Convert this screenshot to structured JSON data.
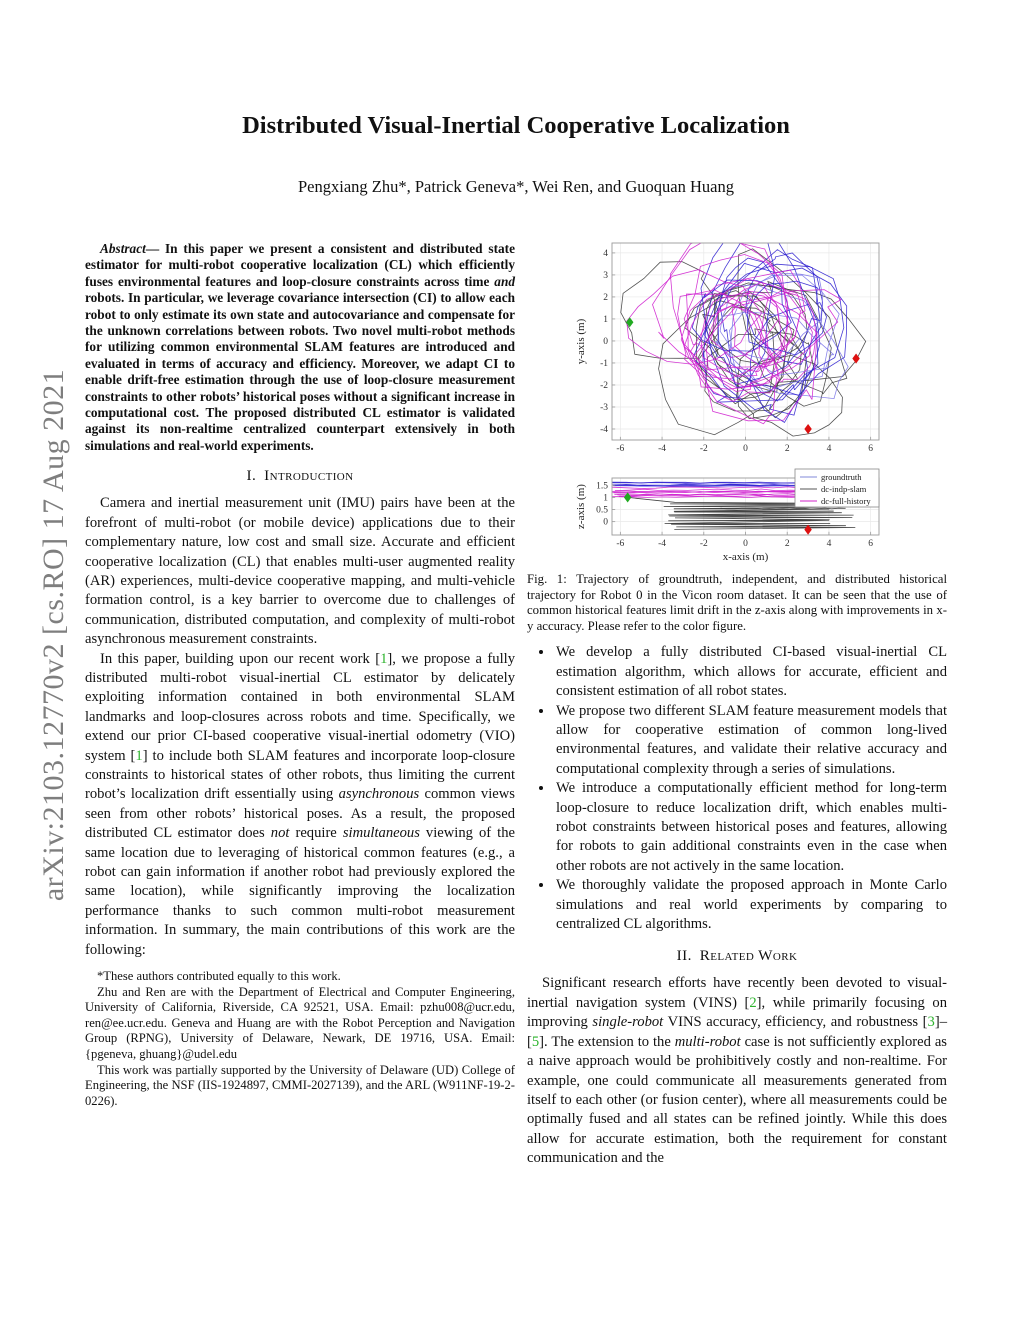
{
  "arxiv_banner": "arXiv:2103.12770v2  [cs.RO]  17 Aug 2021",
  "title": "Distributed Visual-Inertial Cooperative Localization",
  "authors": "Pengxiang Zhu*, Patrick Geneva*, Wei Ren, and Guoquan Huang",
  "headings": {
    "introduction": "I.&ensp;Introduction",
    "related_work": "II.&ensp;Related Work"
  },
  "abstract_html": "<span class=\"abstract-label\">Abstract</span>— In this paper we present a consistent and distributed state estimator for multi-robot cooperative localization (CL) which efficiently fuses environmental features and loop-closure constraints across time <i>and</i> robots. In particular, we leverage covariance intersection (CI) to allow each robot to only estimate its own state and autocovariance and compensate for the unknown correlations between robots. Two novel multi-robot methods for utilizing common environmental SLAM features are introduced and evaluated in terms of accuracy and efficiency. Moreover, we adapt CI to enable drift-free estimation through the use of loop-closure measurement constraints to other robots’ historical poses without a significant increase in computational cost. The proposed distributed CL estimator is validated against its non-realtime centralized counterpart extensively in both simulations and real-world experiments.",
  "paragraphs": {
    "intro_p1": "Camera and inertial measurement unit (IMU) pairs have been at the forefront of multi-robot (or mobile device) applications due to their complementary nature, low cost and small size. Accurate and efficient cooperative localization (CL) that enables multi-user augmented reality (AR) experiences, multi-device cooperative mapping, and multi-vehicle formation control, is a key barrier to overcome due to challenges of communication, distributed computation, and complexity of multi-robot asynchronous measurement constraints.",
    "intro_p2_html": "In this paper, building upon our recent work [<span class=\"cite\" data-name=\"citation-ref-1\" data-interactable=\"true\">1</span>], we propose a fully distributed multi-robot visual-inertial CL estimator by delicately exploiting information contained in both environmental SLAM landmarks and loop-closures across robots and time. Specifically, we extend our prior CI-based cooperative visual-inertial odometry (VIO) system [<span class=\"cite\" data-name=\"citation-ref-1\" data-interactable=\"true\">1</span>] to include both SLAM features and incorporate loop-closure constraints to historical states of other robots, thus limiting the current robot’s localization drift essentially using <i>asynchronous</i> common views seen from other robots’ historical poses. As a result, the proposed distributed CL estimator does <i>not</i> require <i>simultaneous</i> viewing of the same location due to leveraging of historical common features (e.g., a robot can gain information if another robot had previously explored the same location), while significantly improving the localization performance thanks to such common multi-robot measurement information. In summary, the main contributions of this work are the following:",
    "related_p1_html": "Significant research efforts have recently been devoted to visual-inertial navigation system (VINS) [<span class=\"cite\" data-name=\"citation-ref-2\" data-interactable=\"true\">2</span>], while primarily focusing on improving <i>single-robot</i> VINS accuracy, efficiency, and robustness [<span class=\"cite\" data-name=\"citation-ref-3\" data-interactable=\"true\">3</span>]–[<span class=\"cite\" data-name=\"citation-ref-5\" data-interactable=\"true\">5</span>]. The extension to the <i>multi-robot</i> case is not sufficiently explored as a naive approach would be prohibitively costly and non-realtime. For example, one could communicate all measurements generated from itself to each other (or fusion center), where all measurements could be optimally fused and all states can be refined jointly. While this does allow for accurate estimation, both the requirement for constant communication and the"
  },
  "bullets": [
    "We develop a fully distributed CI-based visual-inertial CL estimation algorithm, which allows for accurate, efficient and consistent estimation of all robot states.",
    "We propose two different SLAM feature measurement models that allow for cooperative estimation of common long-lived environmental features, and validate their relative accuracy and computational complexity through a series of simulations.",
    "We introduce a computationally efficient method for long-term loop-closure to reduce localization drift, which enables multi-robot constraints between historical poses and features, allowing for robots to gain additional constraints even in the case when other robots are not actively in the same location.",
    "We thoroughly validate the proposed approach in Monte Carlo simulations and real world experiments by comparing to centralized CL algorithms."
  ],
  "footnotes": [
    "*These authors contributed equally to this work.",
    "Zhu and Ren are with the Department of Electrical and Computer Engineering, University of California, Riverside, CA 92521, USA. Email: pzhu008@ucr.edu, ren@ee.ucr.edu. Geneva and Huang are with the Robot Perception and Navigation Group (RPNG), University of Delaware, Newark, DE 19716, USA. Email: {pgeneva, ghuang}@udel.edu",
    "This work was partially supported by the University of Delaware (UD) College of Engineering, the NSF (IIS-1924897, CMMI-2027139), and the ARL (W911NF-19-2-0226)."
  ],
  "figure": {
    "caption": "Fig. 1: Trajectory of groundtruth, independent, and distributed historical trajectory for Robot 0 in the Vicon room dataset. It can be seen that the use of common historical features limit drift in the z-axis along with improvements in x-y accuracy. Please refer to the color figure.",
    "chart_data": {
      "type": "line",
      "description": "Tangled multi-loop robot trajectories in the x-y plane (top) and near-horizontal tracks in the x-z plane (bottom) for three estimators.",
      "legend_position": "top-right of lower panel",
      "legend": [
        {
          "label": "groundtruth",
          "color": "#8289d8"
        },
        {
          "label": "dc-indp-slam",
          "color": "#555555"
        },
        {
          "label": "dc-full-history",
          "color": "#d023c8"
        }
      ],
      "series_colors": {
        "gt": "#2d1fd0",
        "gt_light": "#7b74e8",
        "indp": "#3a3a3a",
        "full": "#cf1fcf"
      },
      "panels": [
        {
          "ylabel": "y-axis (m)",
          "xlim": [
            -6.4,
            6.4
          ],
          "ylim": [
            -4.5,
            4.45
          ],
          "xticks": [
            -6,
            -4,
            -2,
            0,
            2,
            4,
            6
          ],
          "yticks": [
            -4,
            -3,
            -2,
            -1,
            0,
            1,
            2,
            3,
            4
          ],
          "grid": true,
          "markers": [
            {
              "x": -5.55,
              "y": 0.85,
              "color": "#22aa22",
              "shape": "diamond"
            },
            {
              "x": 5.3,
              "y": -0.8,
              "color": "#dd1111",
              "shape": "diamond"
            },
            {
              "x": 3.0,
              "y": -4.0,
              "color": "#dd1111",
              "shape": "diamond"
            }
          ]
        },
        {
          "ylabel": "z-axis (m)",
          "xlabel": "x-axis (m)",
          "xlim": [
            -6.4,
            6.4
          ],
          "ylim": [
            -0.55,
            1.8
          ],
          "xticks": [
            -6,
            -4,
            -2,
            0,
            2,
            4,
            6
          ],
          "yticks": [
            0,
            0.5,
            1,
            1.5
          ],
          "grid": true,
          "series_summary": {
            "groundtruth_z_range": [
              1.45,
              1.62
            ],
            "dc_full_history_z_range": [
              1.0,
              1.45
            ],
            "dc_indp_slam_z_range": [
              -0.35,
              0.8
            ]
          },
          "markers": [
            {
              "x": -5.65,
              "y": 1.0,
              "color": "#22aa22",
              "shape": "diamond"
            },
            {
              "x": 3.0,
              "y": -0.33,
              "color": "#dd1111",
              "shape": "diamond"
            }
          ]
        }
      ]
    }
  }
}
